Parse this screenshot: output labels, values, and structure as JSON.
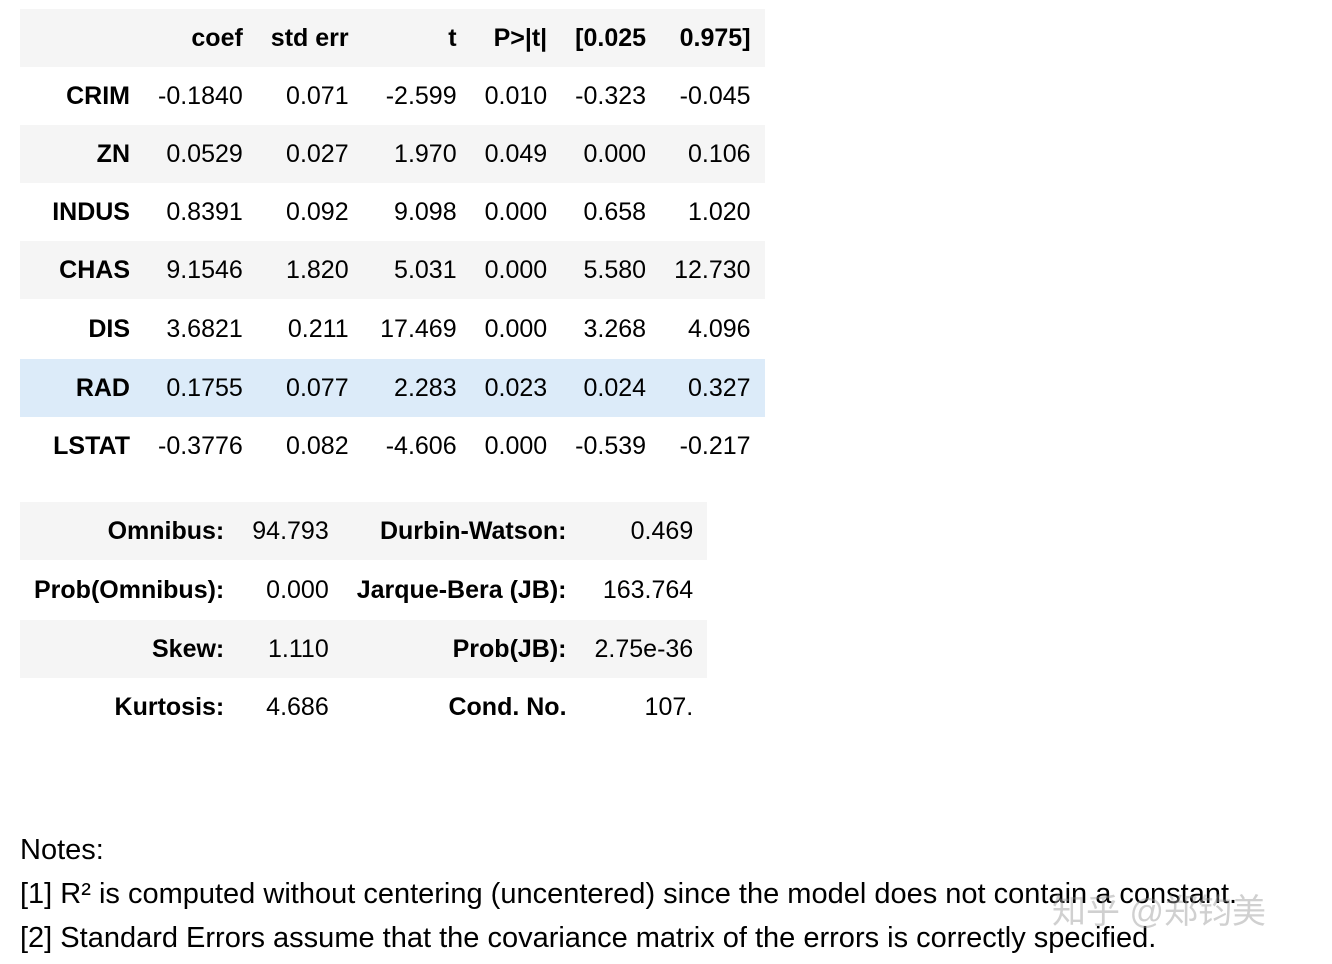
{
  "coef_table": {
    "headers": [
      "",
      "coef",
      "std err",
      "t",
      "P>|t|",
      "[0.025",
      "0.975]"
    ],
    "rows": [
      [
        "CRIM",
        "-0.1840",
        "0.071",
        "-2.599",
        "0.010",
        "-0.323",
        "-0.045"
      ],
      [
        "ZN",
        "0.0529",
        "0.027",
        "1.970",
        "0.049",
        "0.000",
        "0.106"
      ],
      [
        "INDUS",
        "0.8391",
        "0.092",
        "9.098",
        "0.000",
        "0.658",
        "1.020"
      ],
      [
        "CHAS",
        "9.1546",
        "1.820",
        "5.031",
        "0.000",
        "5.580",
        "12.730"
      ],
      [
        "DIS",
        "3.6821",
        "0.211",
        "17.469",
        "0.000",
        "3.268",
        "4.096"
      ],
      [
        "RAD",
        "0.1755",
        "0.077",
        "2.283",
        "0.023",
        "0.024",
        "0.327"
      ],
      [
        "LSTAT",
        "-0.3776",
        "0.082",
        "-4.606",
        "0.000",
        "-0.539",
        "-0.217"
      ]
    ]
  },
  "stats_table": {
    "rows": [
      [
        "Omnibus:",
        "94.793",
        "Durbin-Watson:",
        "0.469"
      ],
      [
        "Prob(Omnibus):",
        "0.000",
        "Jarque-Bera (JB):",
        "163.764"
      ],
      [
        "Skew:",
        "1.110",
        "Prob(JB):",
        "2.75e-36"
      ],
      [
        "Kurtosis:",
        "4.686",
        "Cond. No.",
        "107."
      ]
    ]
  },
  "notes": {
    "title": "Notes:",
    "lines": [
      "[1] R² is computed without centering (uncentered) since the model does not contain a constant.",
      "[2] Standard Errors assume that the covariance matrix of the errors is correctly specified."
    ]
  },
  "watermark": "知乎 @郑钧美"
}
